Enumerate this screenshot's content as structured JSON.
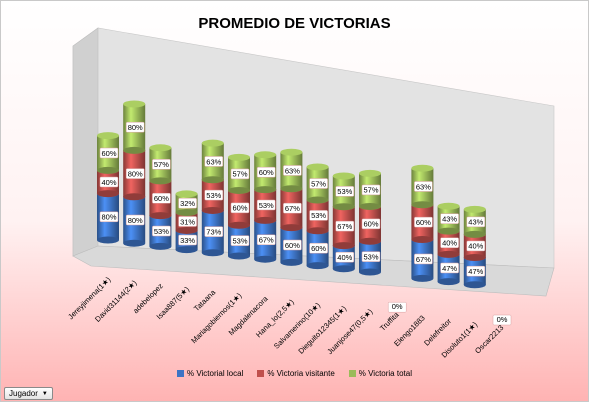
{
  "title": "PROMEDIO DE VICTORIAS",
  "filter_button": {
    "label": "Jugador",
    "arrow": "▼"
  },
  "colors": {
    "local": "#3d73c4",
    "visitante": "#c0504d",
    "total": "#9bbb59"
  },
  "chart_data": {
    "type": "bar",
    "stacked": true,
    "three_d": true,
    "title": "PROMEDIO DE VICTORIAS",
    "legend_position": "bottom",
    "categories": [
      "Jereyjimena(1★)",
      "David31144(2★)",
      "adebelopez",
      "Isaa887(5★)",
      "Tataana",
      "Mariagobiernos(1★)",
      "Magdalenacora",
      "Hana_lo(2,5★)",
      "Salvamerino(10★)",
      "Dieguito12345(1★)",
      "Juanjose47(0,5★)",
      "Truffita",
      "Elengo1883",
      "Delefreitor",
      "Disoluto1(1★)",
      "Oscar2213"
    ],
    "series": [
      {
        "name": "% Victorial local",
        "values": [
          80,
          80,
          53,
          33,
          73,
          53,
          67,
          60,
          60,
          40,
          53,
          0,
          67,
          47,
          47,
          0
        ]
      },
      {
        "name": "% Victoria visitante",
        "values": [
          40,
          80,
          60,
          31,
          53,
          60,
          53,
          67,
          53,
          67,
          60,
          0,
          60,
          40,
          40,
          0
        ]
      },
      {
        "name": "% Victoria total",
        "values": [
          60,
          80,
          57,
          32,
          63,
          57,
          60,
          63,
          57,
          53,
          57,
          0,
          63,
          43,
          43,
          0
        ]
      }
    ],
    "value_labels_unit": "%"
  }
}
